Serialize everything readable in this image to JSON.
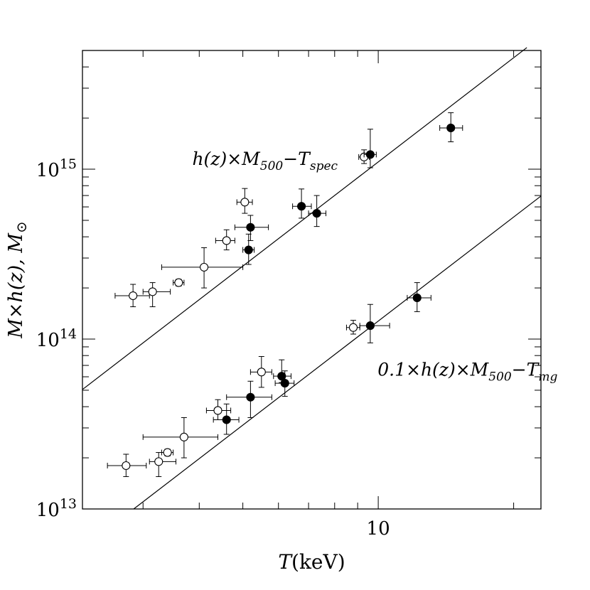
{
  "chart_data": {
    "type": "scatter",
    "x_scale": "log",
    "y_scale": "log",
    "xlim": [
      2.2,
      23
    ],
    "ylim": [
      10000000000000.0,
      5000000000000000.0
    ],
    "x_ticks": [
      {
        "value": 10,
        "label": "10"
      }
    ],
    "y_ticks": [
      {
        "value": 10000000000000.0,
        "base": "10",
        "exp": "13"
      },
      {
        "value": 100000000000000.0,
        "base": "10",
        "exp": "14"
      },
      {
        "value": 1000000000000000.0,
        "base": "10",
        "exp": "15"
      }
    ],
    "xlabel": {
      "var": "T",
      "rest": "(keV)"
    },
    "ylabel": {
      "text": "M×h(z), M",
      "sub": "⊙"
    },
    "annotations": [
      {
        "parts": [
          {
            "t": "h(z)×M"
          },
          {
            "t": "500",
            "sub": true
          },
          {
            "t": "−T"
          },
          {
            "t": "spec",
            "sub": true
          }
        ],
        "x": 5.6,
        "y": 1060000000000000.0
      },
      {
        "parts": [
          {
            "t": "0.1×h(z)×M"
          },
          {
            "t": "500",
            "sub": true
          },
          {
            "t": "−T"
          },
          {
            "t": "mg",
            "sub": true
          }
        ],
        "x": 15.8,
        "y": 61000000000000.0
      }
    ],
    "series": [
      {
        "name": "h(z)×M500−Tspec",
        "fit_line": [
          [
            2.2,
            50500000000000.0
          ],
          [
            21.4,
            5200000000000000.0
          ]
        ],
        "points": [
          {
            "x": 2.85,
            "y": 180000000000000.0,
            "xerr": [
              0.25,
              0.25
            ],
            "yerr": [
              25000000000000.0,
              30000000000000.0
            ],
            "filled": false
          },
          {
            "x": 3.15,
            "y": 190000000000000.0,
            "xerr": [
              0.15,
              0.3
            ],
            "yerr": [
              35000000000000.0,
              25000000000000.0
            ],
            "filled": false
          },
          {
            "x": 3.6,
            "y": 215000000000000.0,
            "xerr": [
              0.1,
              0.1
            ],
            "yerr": [
              10000000000000.0,
              10000000000000.0
            ],
            "filled": false
          },
          {
            "x": 4.1,
            "y": 265000000000000.0,
            "xerr": [
              0.8,
              0.9
            ],
            "yerr": [
              65000000000000.0,
              80000000000000.0
            ],
            "filled": false
          },
          {
            "x": 4.6,
            "y": 380000000000000.0,
            "xerr": [
              0.25,
              0.2
            ],
            "yerr": [
              45000000000000.0,
              60000000000000.0
            ],
            "filled": false
          },
          {
            "x": 5.05,
            "y": 640000000000000.0,
            "xerr": [
              0.2,
              0.2
            ],
            "yerr": [
              90000000000000.0,
              130000000000000.0
            ],
            "filled": false
          },
          {
            "x": 9.3,
            "y": 1180000000000000.0,
            "xerr": [
              0.25,
              0.25
            ],
            "yerr": [
              100000000000000.0,
              120000000000000.0
            ],
            "filled": false
          },
          {
            "x": 5.15,
            "y": 335000000000000.0,
            "xerr": [
              0.15,
              0.15
            ],
            "yerr": [
              60000000000000.0,
              80000000000000.0
            ],
            "filled": true
          },
          {
            "x": 5.2,
            "y": 455000000000000.0,
            "xerr": [
              0.4,
              0.5
            ],
            "yerr": [
              75000000000000.0,
              80000000000000.0
            ],
            "filled": true
          },
          {
            "x": 6.75,
            "y": 605000000000000.0,
            "xerr": [
              0.3,
              0.35
            ],
            "yerr": [
              90000000000000.0,
              160000000000000.0
            ],
            "filled": true
          },
          {
            "x": 7.3,
            "y": 550000000000000.0,
            "xerr": [
              0.3,
              0.35
            ],
            "yerr": [
              90000000000000.0,
              150000000000000.0
            ],
            "filled": true
          },
          {
            "x": 9.6,
            "y": 1220000000000000.0,
            "xerr": [
              0.3,
              0.3
            ],
            "yerr": [
              200000000000000.0,
              500000000000000.0
            ],
            "filled": true
          },
          {
            "x": 14.5,
            "y": 1750000000000000.0,
            "xerr": [
              0.8,
              0.9
            ],
            "yerr": [
              300000000000000.0,
              400000000000000.0
            ],
            "filled": true
          }
        ]
      },
      {
        "name": "0.1×h(z)×M500−Tmg",
        "fit_line": [
          [
            2.86,
            10000000000000.0
          ],
          [
            23,
            695000000000000.0
          ]
        ],
        "points": [
          {
            "x": 2.75,
            "y": 18000000000000.0,
            "xerr": [
              0.25,
              0.3
            ],
            "yerr": [
              2500000000000.0,
              3000000000000.0
            ],
            "filled": false
          },
          {
            "x": 3.25,
            "y": 19000000000000.0,
            "xerr": [
              0.15,
              0.3
            ],
            "yerr": [
              3500000000000.0,
              2500000000000.0
            ],
            "filled": false
          },
          {
            "x": 3.4,
            "y": 21500000000000.0,
            "xerr": [
              0.1,
              0.1
            ],
            "yerr": [
              1000000000000.0,
              1000000000000.0
            ],
            "filled": false
          },
          {
            "x": 3.7,
            "y": 26500000000000.0,
            "xerr": [
              0.7,
              0.7
            ],
            "yerr": [
              6500000000000.0,
              8000000000000.0
            ],
            "filled": false
          },
          {
            "x": 4.4,
            "y": 38000000000000.0,
            "xerr": [
              0.25,
              0.3
            ],
            "yerr": [
              4500000000000.0,
              6000000000000.0
            ],
            "filled": false
          },
          {
            "x": 5.5,
            "y": 64000000000000.0,
            "xerr": [
              0.3,
              0.3
            ],
            "yerr": [
              12000000000000.0,
              15000000000000.0
            ],
            "filled": false
          },
          {
            "x": 8.8,
            "y": 117000000000000.0,
            "xerr": [
              0.3,
              0.3
            ],
            "yerr": [
              10000000000000.0,
              12000000000000.0
            ],
            "filled": false
          },
          {
            "x": 4.6,
            "y": 33500000000000.0,
            "xerr": [
              0.3,
              0.3
            ],
            "yerr": [
              6000000000000.0,
              8000000000000.0
            ],
            "filled": true
          },
          {
            "x": 5.2,
            "y": 45500000000000.0,
            "xerr": [
              0.6,
              0.6
            ],
            "yerr": [
              11000000000000.0,
              11000000000000.0
            ],
            "filled": true
          },
          {
            "x": 6.1,
            "y": 60500000000000.0,
            "xerr": [
              0.25,
              0.3
            ],
            "yerr": [
              5000000000000.0,
              15000000000000.0
            ],
            "filled": true
          },
          {
            "x": 6.2,
            "y": 55000000000000.0,
            "xerr": [
              0.3,
              0.3
            ],
            "yerr": [
              9000000000000.0,
              10000000000000.0
            ],
            "filled": true
          },
          {
            "x": 9.6,
            "y": 120000000000000.0,
            "xerr": [
              0.5,
              1.0
            ],
            "yerr": [
              25000000000000.0,
              40000000000000.0
            ],
            "filled": true
          },
          {
            "x": 12.2,
            "y": 175000000000000.0,
            "xerr": [
              0.6,
              0.9
            ],
            "yerr": [
              30000000000000.0,
              40000000000000.0
            ],
            "filled": true
          }
        ]
      }
    ]
  }
}
